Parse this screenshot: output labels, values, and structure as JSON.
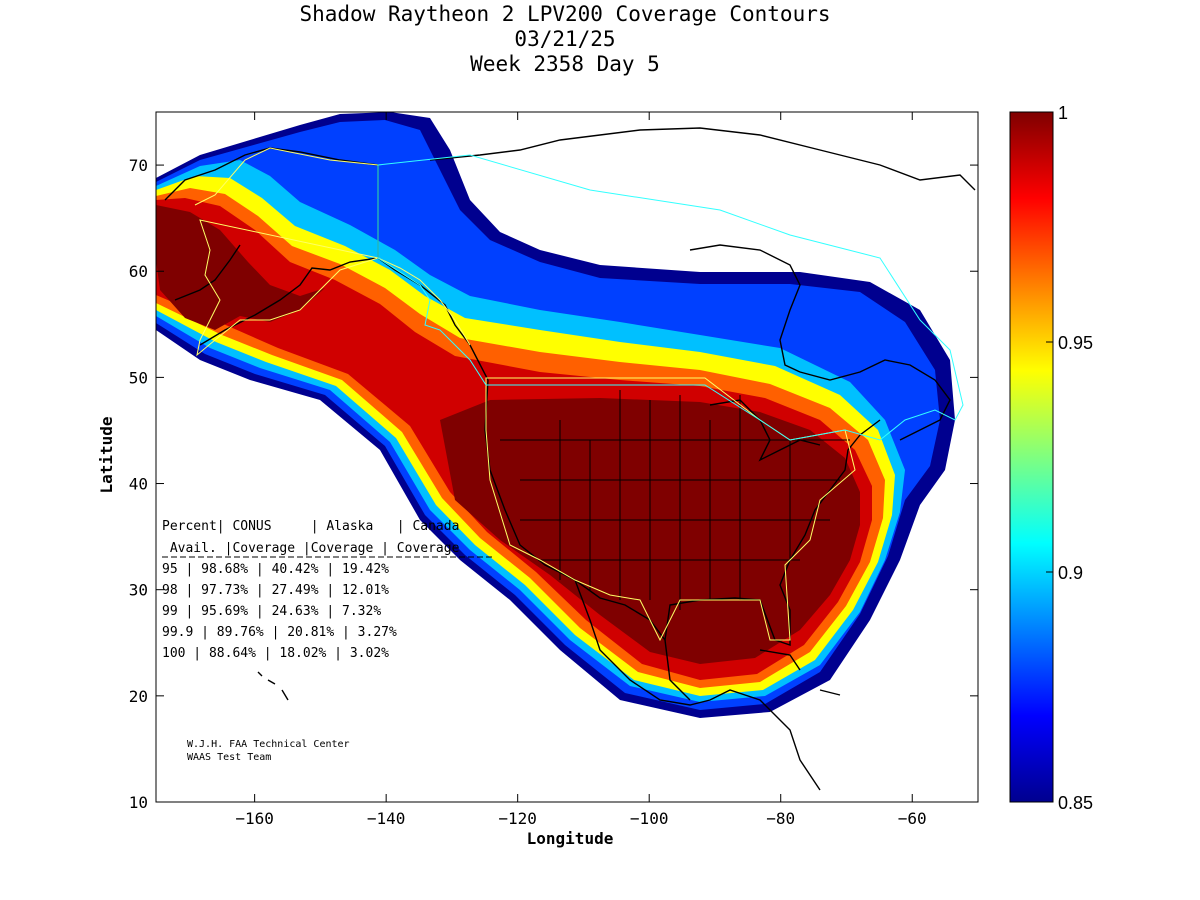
{
  "title": {
    "line1": "Shadow Raytheon 2 LPV200 Coverage Contours",
    "line2": "03/21/25",
    "line3": "Week 2358 Day 5"
  },
  "map": {
    "xlabel": "Longitude",
    "ylabel": "Latitude",
    "xlim": [
      -175,
      -50
    ],
    "ylim": [
      10,
      75
    ],
    "xticks": [
      -160,
      -140,
      -120,
      -100,
      -80,
      -60
    ],
    "yticks": [
      10,
      20,
      30,
      40,
      50,
      60,
      70
    ]
  },
  "colorbar": {
    "min": 0.85,
    "max": 1,
    "ticks": [
      "1",
      "0.95",
      "0.9",
      "0.85"
    ],
    "colormap": "jet"
  },
  "table": {
    "header1": [
      "Percent",
      "CONUS",
      "Alaska",
      "Canada"
    ],
    "header2": [
      "Avail.",
      "Coverage",
      "Coverage",
      "Coverage"
    ],
    "rows": [
      [
        "95",
        "98.68%",
        "40.42%",
        "19.42%"
      ],
      [
        "98",
        "97.73%",
        "27.49%",
        "12.01%"
      ],
      [
        "99",
        "95.69%",
        "24.63%",
        "7.32%"
      ],
      [
        "99.9",
        "89.76%",
        "20.81%",
        "3.27%"
      ],
      [
        "100",
        "88.64%",
        "18.02%",
        "3.02%"
      ]
    ]
  },
  "credit": {
    "line1": "W.J.H. FAA Technical Center",
    "line2": "WAAS Test Team"
  },
  "colors": {
    "coverage_max": "#7f0000",
    "coverage_min": "#00008f",
    "conus_boundary": "#ffff66",
    "canada_boundary": "#33ffff"
  }
}
